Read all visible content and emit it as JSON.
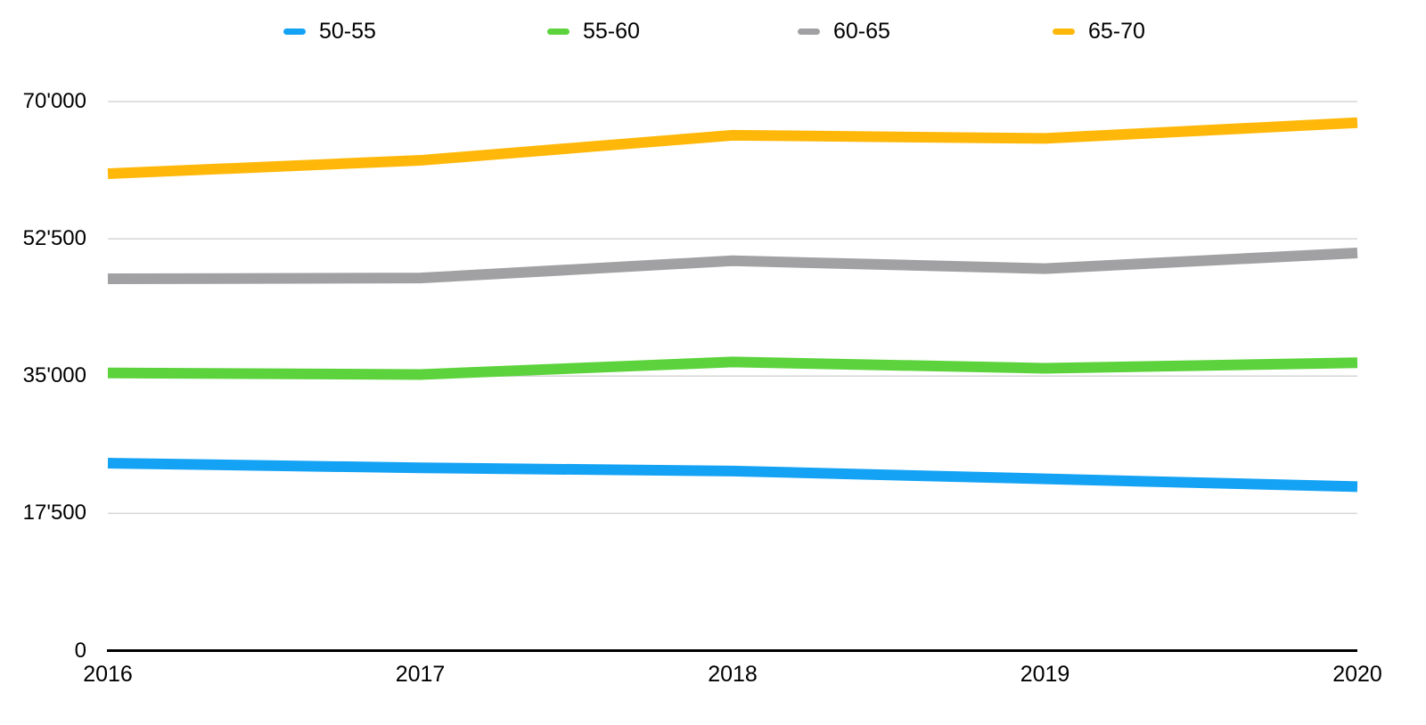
{
  "chart_data": {
    "type": "line",
    "title": "",
    "categories": [
      "2016",
      "2017",
      "2018",
      "2019",
      "2020"
    ],
    "series": [
      {
        "name": "50-55",
        "color": "#14A2F4",
        "values": [
          23900,
          23300,
          22900,
          21900,
          20900
        ]
      },
      {
        "name": "55-60",
        "color": "#5CD33C",
        "values": [
          35400,
          35200,
          36800,
          36000,
          36700
        ]
      },
      {
        "name": "60-65",
        "color": "#A1A1A4",
        "values": [
          47400,
          47500,
          49700,
          48700,
          50700
        ]
      },
      {
        "name": "65-70",
        "color": "#FFB80A",
        "values": [
          60800,
          62500,
          65700,
          65300,
          67300
        ]
      }
    ],
    "ylim": [
      0,
      70000
    ],
    "y_ticks": [
      {
        "value": 70000,
        "label": "70'000"
      },
      {
        "value": 52500,
        "label": "52'500"
      },
      {
        "value": 35000,
        "label": "35'000"
      },
      {
        "value": 17500,
        "label": "17'500"
      },
      {
        "value": 0,
        "label": "0"
      }
    ],
    "x_tick_labels": [
      "2016",
      "2017",
      "2018",
      "2019",
      "2020"
    ],
    "grid": "horizontal",
    "legend_position": "top"
  },
  "colors": {
    "axis": "#000000",
    "gridline": "#D6D6D6",
    "text": "#000000",
    "background": "#FFFFFF"
  }
}
